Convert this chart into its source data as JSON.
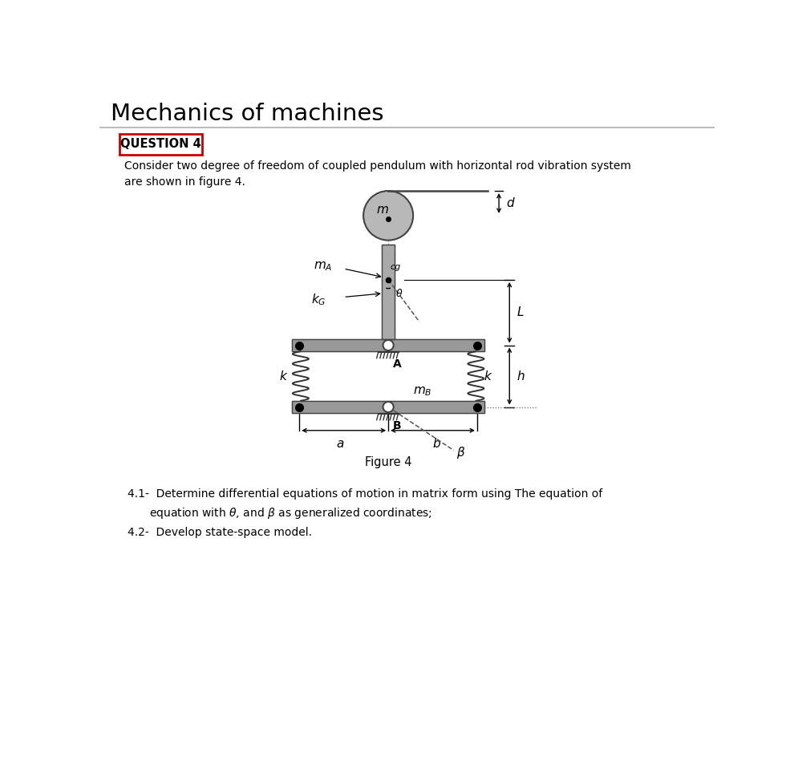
{
  "title": "Mechanics of machines",
  "question_label": "QUESTION 4",
  "question_text_1": "Consider two degree of freedom of coupled pendulum with horizontal rod vibration system",
  "question_text_2": "are shown in figure 4.",
  "figure_label": "Figure 4",
  "item_41_line1": "4.1-  Determine differential equations of motion in matrix form using The equation of",
  "item_41_line2": "       equation with θ, and β as generalized coordinates;",
  "item_42": "4.2-  Develop state-space model.",
  "bg_color": "#ffffff",
  "plate_color": "#999999",
  "plate_edge": "#444444",
  "rod_color": "#aaaaaa",
  "disk_color": "#b8b8b8",
  "text_color": "#000000",
  "spring_color": "#333333",
  "dim_color": "#000000",
  "red_box": "#cc0000",
  "title_line_color": "#bbbbbb"
}
